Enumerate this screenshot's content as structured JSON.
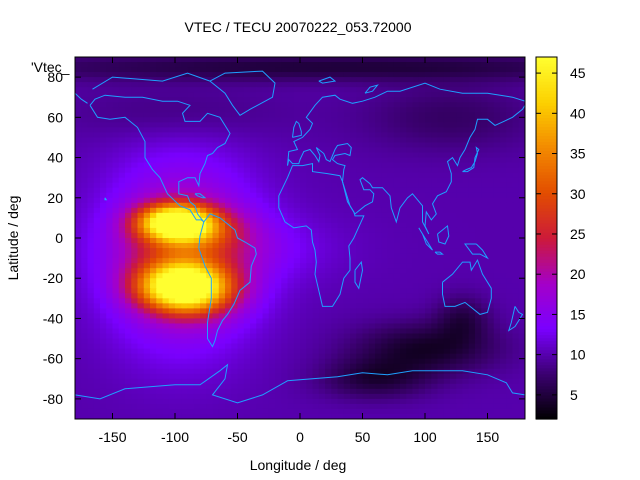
{
  "chart_data": {
    "type": "heatmap",
    "title": "VTEC / TECU 20070222_053.72000",
    "xlabel": "Longitude / deg",
    "ylabel": "Latitude / deg",
    "xlim": [
      -180,
      180
    ],
    "ylim": [
      -90,
      90
    ],
    "x_ticks": [
      -150,
      -100,
      -50,
      0,
      50,
      100,
      150
    ],
    "y_ticks": [
      -80,
      -60,
      -40,
      -20,
      0,
      20,
      40,
      60,
      80
    ],
    "x_tick_labels": [
      "-150",
      "-100",
      "-50",
      "0",
      "50",
      "100",
      "150"
    ],
    "y_tick_labels": [
      "-80",
      "-60",
      "-40",
      "-20",
      "0",
      "20",
      "40",
      "60",
      "80"
    ],
    "legend_entry": "'Vtec_",
    "colorbar": {
      "range": [
        2,
        47
      ],
      "ticks": [
        5,
        10,
        15,
        20,
        25,
        30,
        35,
        40,
        45
      ],
      "tick_labels": [
        "5",
        "10",
        "15",
        "20",
        "25",
        "30",
        "35",
        "40",
        "45"
      ],
      "palette": [
        "#000000",
        "#3b0070",
        "#7a00ff",
        "#a400c8",
        "#cc1a3a",
        "#e24d00",
        "#f38a00",
        "#fcd000",
        "#ffff30"
      ]
    },
    "background_value": 10,
    "features": [
      {
        "lon": -100,
        "lat": 8,
        "slon": 20,
        "slat": 6,
        "amp": 32
      },
      {
        "lon": -85,
        "lat": 4,
        "slon": 25,
        "slat": 7,
        "amp": 10
      },
      {
        "lon": -95,
        "lat": -24,
        "slon": 24,
        "slat": 8,
        "amp": 33
      },
      {
        "lon": -80,
        "lat": -28,
        "slon": 25,
        "slat": 9,
        "amp": 8
      },
      {
        "lon": -95,
        "lat": -8,
        "slon": 40,
        "slat": 30,
        "amp": 13
      },
      {
        "lon": -60,
        "lat": -5,
        "slon": 55,
        "slat": 12,
        "amp": 4
      },
      {
        "lon": 100,
        "lat": -55,
        "slon": 40,
        "slat": 9,
        "amp": -6
      },
      {
        "lon": 60,
        "lat": -70,
        "slon": 30,
        "slat": 7,
        "amp": -5
      },
      {
        "lon": 130,
        "lat": -40,
        "slon": 15,
        "slat": 8,
        "amp": -4
      },
      {
        "lon": 20,
        "lat": 85,
        "slon": 200,
        "slat": 5,
        "amp": -5
      },
      {
        "lon": 120,
        "lat": 60,
        "slon": 50,
        "slat": 12,
        "amp": -3
      },
      {
        "lon": -100,
        "lat": 62,
        "slon": 60,
        "slat": 10,
        "amp": -2
      }
    ],
    "coastlines": [
      [
        [
          -168,
          66
        ],
        [
          -162,
          60
        ],
        [
          -152,
          59
        ],
        [
          -140,
          60
        ],
        [
          -130,
          55
        ],
        [
          -124,
          48
        ],
        [
          -124,
          40
        ],
        [
          -118,
          34
        ],
        [
          -112,
          30
        ],
        [
          -106,
          22
        ],
        [
          -96,
          16
        ],
        [
          -88,
          14
        ],
        [
          -83,
          9
        ],
        [
          -79,
          9
        ],
        [
          -77,
          8
        ],
        [
          -82,
          12
        ],
        [
          -84,
          16
        ],
        [
          -88,
          18
        ],
        [
          -90,
          21
        ],
        [
          -97,
          22
        ],
        [
          -97,
          28
        ],
        [
          -90,
          30
        ],
        [
          -84,
          30
        ],
        [
          -81,
          26
        ],
        [
          -80,
          32
        ],
        [
          -76,
          37
        ],
        [
          -74,
          41
        ],
        [
          -70,
          42
        ],
        [
          -66,
          45
        ],
        [
          -60,
          47
        ],
        [
          -56,
          52
        ],
        [
          -60,
          56
        ],
        [
          -64,
          60
        ],
        [
          -74,
          62
        ],
        [
          -80,
          58
        ],
        [
          -92,
          58
        ],
        [
          -94,
          62
        ],
        [
          -88,
          66
        ],
        [
          -98,
          68
        ],
        [
          -110,
          68
        ],
        [
          -126,
          70
        ],
        [
          -140,
          70
        ],
        [
          -156,
          71
        ],
        [
          -164,
          69
        ],
        [
          -168,
          66
        ]
      ],
      [
        [
          -77,
          8
        ],
        [
          -72,
          12
        ],
        [
          -64,
          10
        ],
        [
          -58,
          7
        ],
        [
          -52,
          4
        ],
        [
          -50,
          0
        ],
        [
          -44,
          -2
        ],
        [
          -36,
          -5
        ],
        [
          -35,
          -8
        ],
        [
          -39,
          -14
        ],
        [
          -40,
          -22
        ],
        [
          -48,
          -26
        ],
        [
          -53,
          -33
        ],
        [
          -58,
          -38
        ],
        [
          -62,
          -41
        ],
        [
          -66,
          -46
        ],
        [
          -68,
          -51
        ],
        [
          -70,
          -54
        ],
        [
          -74,
          -50
        ],
        [
          -74,
          -42
        ],
        [
          -71,
          -30
        ],
        [
          -71,
          -20
        ],
        [
          -76,
          -14
        ],
        [
          -81,
          -5
        ],
        [
          -80,
          1
        ],
        [
          -77,
          8
        ]
      ],
      [
        [
          -72,
          78
        ],
        [
          -60,
          82
        ],
        [
          -30,
          83
        ],
        [
          -20,
          77
        ],
        [
          -22,
          70
        ],
        [
          -40,
          64
        ],
        [
          -48,
          61
        ],
        [
          -54,
          66
        ],
        [
          -60,
          72
        ],
        [
          -72,
          78
        ]
      ],
      [
        [
          -17,
          21
        ],
        [
          -17,
          15
        ],
        [
          -12,
          8
        ],
        [
          -5,
          5
        ],
        [
          5,
          6
        ],
        [
          9,
          4
        ],
        [
          10,
          -2
        ],
        [
          12,
          -6
        ],
        [
          13,
          -12
        ],
        [
          12,
          -18
        ],
        [
          18,
          -34
        ],
        [
          26,
          -34
        ],
        [
          32,
          -28
        ],
        [
          35,
          -20
        ],
        [
          40,
          -16
        ],
        [
          40,
          -10
        ],
        [
          39,
          -4
        ],
        [
          43,
          0
        ],
        [
          51,
          11
        ],
        [
          44,
          11
        ],
        [
          43,
          13
        ],
        [
          38,
          18
        ],
        [
          34,
          28
        ],
        [
          32,
          31
        ],
        [
          22,
          32
        ],
        [
          10,
          33
        ],
        [
          10,
          37
        ],
        [
          2,
          36
        ],
        [
          -6,
          36
        ],
        [
          -10,
          30
        ],
        [
          -17,
          21
        ]
      ],
      [
        [
          -10,
          36
        ],
        [
          -9,
          43
        ],
        [
          -2,
          44
        ],
        [
          -5,
          48
        ],
        [
          2,
          50
        ],
        [
          8,
          54
        ],
        [
          10,
          57
        ],
        [
          5,
          60
        ],
        [
          12,
          66
        ],
        [
          18,
          70
        ],
        [
          28,
          71
        ],
        [
          32,
          69
        ],
        [
          42,
          67
        ],
        [
          50,
          68
        ],
        [
          60,
          70
        ],
        [
          70,
          73
        ],
        [
          80,
          73
        ],
        [
          100,
          77
        ],
        [
          112,
          74
        ],
        [
          130,
          72
        ],
        [
          150,
          72
        ],
        [
          170,
          70
        ],
        [
          180,
          68
        ]
      ],
      [
        [
          180,
          66
        ],
        [
          178,
          64
        ],
        [
          170,
          60
        ],
        [
          163,
          58
        ],
        [
          156,
          56
        ],
        [
          150,
          59
        ],
        [
          142,
          59
        ],
        [
          140,
          54
        ],
        [
          136,
          50
        ],
        [
          132,
          44
        ],
        [
          128,
          40
        ],
        [
          126,
          36
        ],
        [
          122,
          40
        ],
        [
          118,
          38
        ],
        [
          121,
          32
        ],
        [
          121,
          28
        ],
        [
          117,
          23
        ],
        [
          110,
          21
        ],
        [
          106,
          17
        ],
        [
          109,
          12
        ],
        [
          105,
          9
        ],
        [
          101,
          13
        ],
        [
          100,
          6
        ],
        [
          103,
          2
        ],
        [
          98,
          8
        ],
        [
          98,
          16
        ],
        [
          94,
          19
        ],
        [
          90,
          22
        ],
        [
          86,
          20
        ],
        [
          80,
          15
        ],
        [
          77,
          8
        ],
        [
          73,
          15
        ],
        [
          72,
          21
        ],
        [
          66,
          25
        ],
        [
          58,
          25
        ],
        [
          56,
          27
        ],
        [
          50,
          30
        ],
        [
          48,
          29
        ],
        [
          51,
          24
        ],
        [
          56,
          24
        ],
        [
          59,
          22
        ],
        [
          58,
          18
        ],
        [
          52,
          16
        ],
        [
          44,
          12
        ],
        [
          40,
          16
        ],
        [
          36,
          24
        ],
        [
          34,
          28
        ],
        [
          35,
          34
        ],
        [
          36,
          36
        ],
        [
          30,
          37
        ],
        [
          26,
          39
        ],
        [
          28,
          41
        ],
        [
          36,
          42
        ],
        [
          40,
          41
        ],
        [
          41,
          45
        ],
        [
          38,
          47
        ],
        [
          30,
          46
        ],
        [
          28,
          44
        ],
        [
          24,
          38
        ],
        [
          21,
          39
        ],
        [
          19,
          42
        ],
        [
          13,
          45
        ],
        [
          16,
          41
        ],
        [
          15,
          38
        ],
        [
          12,
          41
        ],
        [
          8,
          44
        ],
        [
          3,
          43
        ],
        [
          0,
          39
        ],
        [
          -1,
          37
        ],
        [
          -6,
          37
        ],
        [
          -9,
          39
        ],
        [
          -10,
          36
        ]
      ],
      [
        [
          114,
          -22
        ],
        [
          122,
          -18
        ],
        [
          130,
          -12
        ],
        [
          136,
          -12
        ],
        [
          137,
          -16
        ],
        [
          142,
          -11
        ],
        [
          146,
          -18
        ],
        [
          150,
          -22
        ],
        [
          153,
          -25
        ],
        [
          153,
          -30
        ],
        [
          150,
          -37
        ],
        [
          144,
          -38
        ],
        [
          138,
          -35
        ],
        [
          132,
          -32
        ],
        [
          124,
          -34
        ],
        [
          116,
          -34
        ],
        [
          114,
          -28
        ],
        [
          114,
          -22
        ]
      ],
      [
        [
          -180,
          -78
        ],
        [
          -160,
          -80
        ],
        [
          -140,
          -75
        ],
        [
          -120,
          -74
        ],
        [
          -100,
          -73
        ],
        [
          -80,
          -73
        ],
        [
          -64,
          -66
        ],
        [
          -58,
          -63
        ],
        [
          -60,
          -70
        ],
        [
          -70,
          -78
        ],
        [
          -50,
          -82
        ],
        [
          -30,
          -78
        ],
        [
          -10,
          -71
        ],
        [
          10,
          -70
        ],
        [
          30,
          -69
        ],
        [
          50,
          -67
        ],
        [
          70,
          -68
        ],
        [
          90,
          -66
        ],
        [
          110,
          -66
        ],
        [
          130,
          -66
        ],
        [
          150,
          -68
        ],
        [
          165,
          -72
        ],
        [
          170,
          -77
        ],
        [
          180,
          -78
        ]
      ],
      [
        [
          -6,
          50
        ],
        [
          -5,
          55
        ],
        [
          -3,
          58
        ],
        [
          -1,
          57
        ],
        [
          1,
          53
        ],
        [
          1,
          51
        ],
        [
          -6,
          50
        ]
      ],
      [
        [
          44,
          -16
        ],
        [
          49,
          -12
        ],
        [
          50,
          -16
        ],
        [
          47,
          -25
        ],
        [
          44,
          -22
        ],
        [
          44,
          -16
        ]
      ],
      [
        [
          130,
          33
        ],
        [
          133,
          34
        ],
        [
          137,
          35
        ],
        [
          140,
          38
        ],
        [
          142,
          42
        ],
        [
          141,
          45
        ],
        [
          143,
          44
        ],
        [
          140,
          40
        ],
        [
          139,
          35
        ],
        [
          134,
          33
        ],
        [
          130,
          33
        ]
      ],
      [
        [
          172,
          -34
        ],
        [
          175,
          -37
        ],
        [
          178,
          -38
        ],
        [
          175,
          -41
        ],
        [
          172,
          -44
        ],
        [
          167,
          -46
        ],
        [
          169,
          -42
        ],
        [
          172,
          -34
        ]
      ],
      [
        [
          95,
          5
        ],
        [
          100,
          0
        ],
        [
          104,
          -4
        ],
        [
          106,
          -6
        ],
        [
          101,
          -3
        ],
        [
          98,
          2
        ],
        [
          95,
          5
        ]
      ],
      [
        [
          108,
          -7
        ],
        [
          112,
          -7
        ],
        [
          114,
          -8
        ],
        [
          110,
          -8
        ],
        [
          108,
          -7
        ]
      ],
      [
        [
          110,
          2
        ],
        [
          114,
          4
        ],
        [
          118,
          6
        ],
        [
          119,
          1
        ],
        [
          116,
          -3
        ],
        [
          111,
          -2
        ],
        [
          110,
          2
        ]
      ],
      [
        [
          141,
          -3
        ],
        [
          146,
          -6
        ],
        [
          150,
          -10
        ],
        [
          144,
          -8
        ],
        [
          138,
          -8
        ],
        [
          132,
          -3
        ],
        [
          141,
          -3
        ]
      ],
      [
        [
          -166,
          74
        ],
        [
          -150,
          80
        ],
        [
          -110,
          78
        ],
        [
          -90,
          82
        ],
        [
          -72,
          78
        ]
      ],
      [
        [
          15,
          78
        ],
        [
          24,
          80
        ],
        [
          28,
          78
        ],
        [
          18,
          77
        ],
        [
          15,
          78
        ]
      ],
      [
        [
          52,
          72
        ],
        [
          56,
          75
        ],
        [
          62,
          76
        ],
        [
          58,
          73
        ],
        [
          52,
          72
        ]
      ],
      [
        [
          -180,
          72
        ],
        [
          -175,
          69
        ],
        [
          -170,
          67
        ]
      ],
      [
        [
          -156,
          20
        ],
        [
          -155,
          19
        ],
        [
          -156,
          19
        ],
        [
          -156,
          20
        ]
      ],
      [
        [
          -84,
          22
        ],
        [
          -80,
          22
        ],
        [
          -76,
          20
        ],
        [
          -78,
          20
        ],
        [
          -82,
          21
        ],
        [
          -84,
          22
        ]
      ]
    ]
  }
}
